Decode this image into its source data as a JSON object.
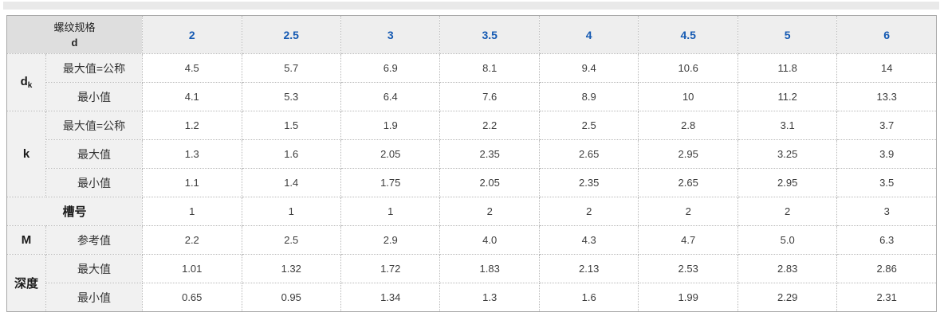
{
  "colors": {
    "accent_blue": "#1459b2",
    "header_corner_bg": "#dedede",
    "header_col_bg": "#eeeeee",
    "label_bg": "#f1f1f1",
    "border_dotted": "#b9b9b9",
    "border_outer": "#a8a8a8",
    "top_bar_bg": "#e9e9e9"
  },
  "table": {
    "header": {
      "title_line1": "螺纹规格",
      "title_line2": "d",
      "columns": [
        "2",
        "2.5",
        "3",
        "3.5",
        "4",
        "4.5",
        "5",
        "6"
      ]
    },
    "rows": [
      {
        "cells": [
          {
            "text": "d",
            "sub": "k",
            "type": "group",
            "rowspan": 2,
            "name": "row-group-dk"
          },
          {
            "text": "最大值=公称",
            "type": "label",
            "name": "row-label-max-nominal"
          },
          {
            "text": "4.5"
          },
          {
            "text": "5.7"
          },
          {
            "text": "6.9"
          },
          {
            "text": "8.1"
          },
          {
            "text": "9.4"
          },
          {
            "text": "10.6"
          },
          {
            "text": "11.8"
          },
          {
            "text": "14"
          }
        ]
      },
      {
        "cells": [
          {
            "text": "最小值",
            "type": "label",
            "name": "row-label-min"
          },
          {
            "text": "4.1"
          },
          {
            "text": "5.3"
          },
          {
            "text": "6.4"
          },
          {
            "text": "7.6"
          },
          {
            "text": "8.9"
          },
          {
            "text": "10"
          },
          {
            "text": "11.2"
          },
          {
            "text": "13.3"
          }
        ]
      },
      {
        "cells": [
          {
            "text": "k",
            "type": "group",
            "rowspan": 3,
            "name": "row-group-k"
          },
          {
            "text": "最大值=公称",
            "type": "label",
            "name": "row-label-max-nominal"
          },
          {
            "text": "1.2"
          },
          {
            "text": "1.5"
          },
          {
            "text": "1.9"
          },
          {
            "text": "2.2"
          },
          {
            "text": "2.5"
          },
          {
            "text": "2.8"
          },
          {
            "text": "3.1"
          },
          {
            "text": "3.7"
          }
        ]
      },
      {
        "cells": [
          {
            "text": "最大值",
            "type": "label",
            "name": "row-label-max"
          },
          {
            "text": "1.3"
          },
          {
            "text": "1.6"
          },
          {
            "text": "2.05"
          },
          {
            "text": "2.35"
          },
          {
            "text": "2.65"
          },
          {
            "text": "2.95"
          },
          {
            "text": "3.25"
          },
          {
            "text": "3.9"
          }
        ]
      },
      {
        "cells": [
          {
            "text": "最小值",
            "type": "label",
            "name": "row-label-min"
          },
          {
            "text": "1.1"
          },
          {
            "text": "1.4"
          },
          {
            "text": "1.75"
          },
          {
            "text": "2.05"
          },
          {
            "text": "2.35"
          },
          {
            "text": "2.65"
          },
          {
            "text": "2.95"
          },
          {
            "text": "3.5"
          }
        ]
      },
      {
        "cells": [
          {
            "text": "槽号",
            "type": "span-label",
            "colspan": 2,
            "name": "row-label-slot-number"
          },
          {
            "text": "1"
          },
          {
            "text": "1"
          },
          {
            "text": "1"
          },
          {
            "text": "2"
          },
          {
            "text": "2"
          },
          {
            "text": "2"
          },
          {
            "text": "2"
          },
          {
            "text": "3"
          }
        ]
      },
      {
        "cells": [
          {
            "text": "M",
            "type": "group",
            "name": "row-group-m"
          },
          {
            "text": "参考值",
            "type": "label",
            "name": "row-label-reference"
          },
          {
            "text": "2.2"
          },
          {
            "text": "2.5"
          },
          {
            "text": "2.9"
          },
          {
            "text": "4.0"
          },
          {
            "text": "4.3"
          },
          {
            "text": "4.7"
          },
          {
            "text": "5.0"
          },
          {
            "text": "6.3"
          }
        ]
      },
      {
        "cells": [
          {
            "text": "深度",
            "type": "group",
            "rowspan": 2,
            "name": "row-group-depth"
          },
          {
            "text": "最大值",
            "type": "label",
            "name": "row-label-max"
          },
          {
            "text": "1.01"
          },
          {
            "text": "1.32"
          },
          {
            "text": "1.72"
          },
          {
            "text": "1.83"
          },
          {
            "text": "2.13"
          },
          {
            "text": "2.53"
          },
          {
            "text": "2.83"
          },
          {
            "text": "2.86"
          }
        ]
      },
      {
        "cells": [
          {
            "text": "最小值",
            "type": "label",
            "name": "row-label-min"
          },
          {
            "text": "0.65"
          },
          {
            "text": "0.95"
          },
          {
            "text": "1.34"
          },
          {
            "text": "1.3"
          },
          {
            "text": "1.6"
          },
          {
            "text": "1.99"
          },
          {
            "text": "2.29"
          },
          {
            "text": "2.31"
          }
        ]
      }
    ]
  }
}
